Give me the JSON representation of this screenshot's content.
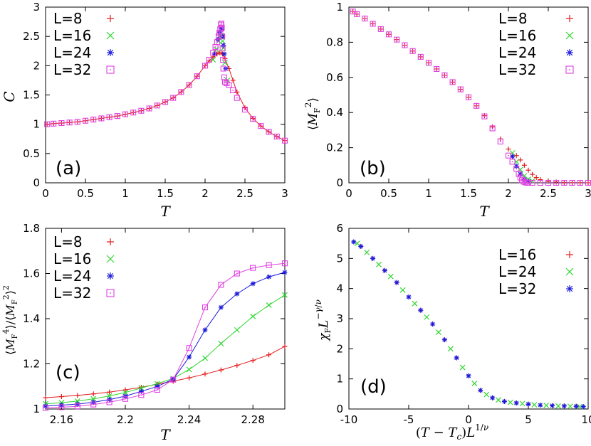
{
  "chart_data": [
    {
      "type": "scatter",
      "panel": "(a)",
      "xlabel": "T",
      "ylabel": "C",
      "xlim": [
        0,
        3
      ],
      "ylim": [
        0,
        3
      ],
      "xticks": [
        "0",
        "0.5",
        "1",
        "1.5",
        "2",
        "2.5",
        "3"
      ],
      "yticks": [
        "0",
        "0.5",
        "1",
        "1.5",
        "2",
        "2.5",
        "3"
      ],
      "legend_position": "top-left",
      "series": [
        {
          "name": "L=8",
          "marker": "plus",
          "color": "#e41a1c",
          "x": [
            0.02,
            0.1,
            0.2,
            0.3,
            0.4,
            0.5,
            0.6,
            0.7,
            0.8,
            0.9,
            1.0,
            1.1,
            1.2,
            1.3,
            1.4,
            1.5,
            1.6,
            1.7,
            1.8,
            1.9,
            2.0,
            2.05,
            2.1,
            2.15,
            2.18,
            2.2,
            2.22,
            2.25,
            2.3,
            2.35,
            2.4,
            2.5,
            2.6,
            2.7,
            2.8,
            2.9,
            3.0
          ],
          "y": [
            1.0,
            1.01,
            1.02,
            1.03,
            1.04,
            1.06,
            1.08,
            1.1,
            1.12,
            1.14,
            1.17,
            1.2,
            1.23,
            1.27,
            1.32,
            1.38,
            1.45,
            1.55,
            1.67,
            1.82,
            2.0,
            2.08,
            2.15,
            2.2,
            2.22,
            2.22,
            2.2,
            2.12,
            1.95,
            1.75,
            1.55,
            1.28,
            1.1,
            0.97,
            0.87,
            0.79,
            0.72
          ]
        },
        {
          "name": "L=16",
          "marker": "cross",
          "color": "#2fd62f",
          "x": [
            2.1,
            2.14,
            2.17,
            2.19,
            2.2,
            2.21,
            2.22,
            2.23,
            2.25,
            2.28
          ],
          "y": [
            2.1,
            2.28,
            2.42,
            2.5,
            2.52,
            2.5,
            2.42,
            2.3,
            2.05,
            1.75
          ]
        },
        {
          "name": "L=24",
          "marker": "star",
          "color": "#1a1adc",
          "x": [
            2.12,
            2.16,
            2.18,
            2.2,
            2.21,
            2.22,
            2.23,
            2.24,
            2.26
          ],
          "y": [
            2.2,
            2.45,
            2.57,
            2.64,
            2.62,
            2.5,
            2.35,
            2.2,
            1.95
          ]
        },
        {
          "name": "L=32",
          "marker": "square",
          "color": "#e040e0",
          "x": [
            0.02,
            0.1,
            0.2,
            0.3,
            0.4,
            0.5,
            0.6,
            0.7,
            0.8,
            0.9,
            1.0,
            1.1,
            1.2,
            1.3,
            1.4,
            1.5,
            1.6,
            1.7,
            1.8,
            1.9,
            2.0,
            2.05,
            2.1,
            2.13,
            2.15,
            2.17,
            2.18,
            2.19,
            2.2,
            2.205,
            2.21,
            2.215,
            2.22,
            2.225,
            2.23,
            2.24,
            2.25,
            2.27,
            2.3,
            2.35,
            2.4,
            2.5,
            2.6,
            2.7,
            2.8,
            2.9,
            3.0
          ],
          "y": [
            1.0,
            1.01,
            1.02,
            1.03,
            1.04,
            1.06,
            1.08,
            1.1,
            1.12,
            1.14,
            1.17,
            1.2,
            1.23,
            1.27,
            1.32,
            1.38,
            1.45,
            1.55,
            1.67,
            1.82,
            2.0,
            2.1,
            2.22,
            2.32,
            2.4,
            2.5,
            2.56,
            2.62,
            2.7,
            2.72,
            2.65,
            2.5,
            2.3,
            2.1,
            1.95,
            1.8,
            1.72,
            1.7,
            1.67,
            1.58,
            1.45,
            1.25,
            1.09,
            0.97,
            0.87,
            0.79,
            0.72
          ]
        }
      ]
    },
    {
      "type": "scatter",
      "panel": "(b)",
      "xlabel": "T",
      "ylabel": "⟨M_F^2⟩",
      "xlim": [
        0,
        3
      ],
      "ylim": [
        0,
        1
      ],
      "xticks": [
        "0",
        "0.5",
        "1",
        "1.5",
        "2",
        "2.5",
        "3"
      ],
      "yticks": [
        "0",
        "0.2",
        "0.4",
        "0.6",
        "0.8",
        "1"
      ],
      "legend_position": "top-right",
      "series": [
        {
          "name": "L=8",
          "marker": "plus",
          "color": "#e41a1c",
          "x": [
            0.05,
            0.1,
            0.2,
            0.3,
            0.4,
            0.5,
            0.6,
            0.7,
            0.8,
            0.9,
            1.0,
            1.1,
            1.2,
            1.3,
            1.4,
            1.5,
            1.6,
            1.7,
            1.8,
            1.9,
            2.0,
            2.1,
            2.15,
            2.2,
            2.25,
            2.3,
            2.35,
            2.4,
            2.5,
            2.6,
            2.7,
            2.8,
            2.9,
            3.0
          ],
          "y": [
            0.975,
            0.96,
            0.935,
            0.905,
            0.875,
            0.845,
            0.815,
            0.783,
            0.75,
            0.717,
            0.683,
            0.648,
            0.612,
            0.573,
            0.532,
            0.487,
            0.438,
            0.382,
            0.318,
            0.25,
            0.192,
            0.155,
            0.13,
            0.1,
            0.072,
            0.048,
            0.03,
            0.018,
            0.008,
            0.004,
            0.002,
            0.001,
            0.001,
            0.0
          ]
        },
        {
          "name": "L=16",
          "marker": "cross",
          "color": "#2fd62f",
          "x": [
            2.05,
            2.1,
            2.15,
            2.2,
            2.25,
            2.3
          ],
          "y": [
            0.17,
            0.12,
            0.075,
            0.04,
            0.02,
            0.01
          ]
        },
        {
          "name": "L=24",
          "marker": "star",
          "color": "#1a1adc",
          "x": [
            2.05,
            2.1,
            2.15,
            2.2,
            2.25
          ],
          "y": [
            0.15,
            0.095,
            0.05,
            0.02,
            0.008
          ]
        },
        {
          "name": "L=32",
          "marker": "square",
          "color": "#e040e0",
          "x": [
            0.05,
            0.1,
            0.2,
            0.3,
            0.4,
            0.5,
            0.6,
            0.7,
            0.8,
            0.9,
            1.0,
            1.1,
            1.2,
            1.3,
            1.4,
            1.5,
            1.6,
            1.7,
            1.8,
            1.9,
            2.0,
            2.05,
            2.1,
            2.13,
            2.15,
            2.17,
            2.19,
            2.21,
            2.23,
            2.25,
            2.3,
            2.4,
            2.5,
            2.6,
            2.7,
            2.8,
            2.9,
            3.0
          ],
          "y": [
            0.975,
            0.96,
            0.935,
            0.905,
            0.875,
            0.845,
            0.815,
            0.783,
            0.75,
            0.717,
            0.683,
            0.648,
            0.612,
            0.573,
            0.532,
            0.487,
            0.438,
            0.378,
            0.31,
            0.235,
            0.155,
            0.12,
            0.08,
            0.05,
            0.03,
            0.015,
            0.007,
            0.003,
            0.001,
            0.0,
            0.0,
            0.0,
            0.0,
            0.0,
            0.0,
            0.0,
            0.0,
            0.0
          ]
        }
      ]
    },
    {
      "type": "line",
      "panel": "(c)",
      "xlabel": "T",
      "ylabel": "⟨M_F^4⟩/⟨M_F^2⟩^2",
      "xlim": [
        2.15,
        2.3
      ],
      "ylim": [
        1.0,
        1.8
      ],
      "xticks": [
        "2.16",
        "2.2",
        "2.24",
        "2.28"
      ],
      "yticks": [
        "1",
        "1.2",
        "1.4",
        "1.6",
        "1.8"
      ],
      "legend_position": "top-left",
      "x": [
        2.15,
        2.16,
        2.17,
        2.18,
        2.19,
        2.2,
        2.21,
        2.22,
        2.23,
        2.24,
        2.25,
        2.26,
        2.27,
        2.28,
        2.29,
        2.3
      ],
      "series": [
        {
          "name": "L=8",
          "marker": "plus",
          "color": "#e41a1c",
          "values": [
            1.05,
            1.055,
            1.06,
            1.067,
            1.075,
            1.085,
            1.096,
            1.11,
            1.123,
            1.138,
            1.155,
            1.173,
            1.193,
            1.215,
            1.24,
            1.277
          ]
        },
        {
          "name": "L=16",
          "marker": "cross",
          "color": "#2fd62f",
          "values": [
            1.023,
            1.028,
            1.035,
            1.045,
            1.058,
            1.073,
            1.093,
            1.112,
            1.135,
            1.175,
            1.225,
            1.29,
            1.35,
            1.41,
            1.46,
            1.505
          ]
        },
        {
          "name": "L=24",
          "marker": "star",
          "color": "#1a1adc",
          "values": [
            1.013,
            1.017,
            1.022,
            1.03,
            1.042,
            1.057,
            1.078,
            1.1,
            1.132,
            1.23,
            1.35,
            1.45,
            1.51,
            1.555,
            1.585,
            1.605
          ]
        },
        {
          "name": "L=32",
          "marker": "square",
          "color": "#e040e0",
          "values": [
            1.005,
            1.008,
            1.012,
            1.02,
            1.03,
            1.045,
            1.062,
            1.085,
            1.13,
            1.27,
            1.45,
            1.55,
            1.6,
            1.625,
            1.637,
            1.645
          ]
        }
      ]
    },
    {
      "type": "scatter",
      "panel": "(d)",
      "xlabel": "(T − T_c)L^{1/ν}",
      "ylabel": "χ_F L^{−γ/ν}",
      "xlim": [
        -10,
        10
      ],
      "ylim": [
        0,
        6
      ],
      "xticks": [
        "-10",
        "-5",
        "0",
        "5",
        "10"
      ],
      "yticks": [
        "0",
        "1",
        "2",
        "3",
        "4",
        "5",
        "6"
      ],
      "legend_position": "top-right",
      "series": [
        {
          "name": "L=16",
          "marker": "plus",
          "color": "#e41a1c",
          "x": [
            -9,
            -8,
            -7,
            -6,
            -5,
            -4,
            -3,
            -2,
            -1,
            0,
            1,
            2,
            3,
            4,
            5,
            6,
            7,
            8,
            9
          ],
          "y": [
            5.4,
            5.0,
            4.6,
            4.2,
            3.72,
            3.28,
            2.82,
            2.3,
            1.7,
            1.1,
            0.62,
            0.37,
            0.25,
            0.2,
            0.16,
            0.13,
            0.11,
            0.1,
            0.09
          ]
        },
        {
          "name": "L=24",
          "marker": "cross",
          "color": "#2fd62f",
          "x": [
            -9.3,
            -8.5,
            -7.5,
            -6.5,
            -5.5,
            -4.5,
            -3.5,
            -2.5,
            -1.5,
            -0.5,
            0.5,
            1.5,
            2.5,
            3.5,
            4.5,
            5.5,
            6.5,
            7.5,
            8.5,
            9.3
          ],
          "y": [
            5.5,
            5.2,
            4.8,
            4.4,
            3.95,
            3.5,
            3.05,
            2.55,
            2.0,
            1.38,
            0.85,
            0.48,
            0.3,
            0.22,
            0.18,
            0.14,
            0.12,
            0.1,
            0.09,
            0.08
          ]
        },
        {
          "name": "L=32",
          "marker": "star",
          "color": "#1a1adc",
          "x": [
            -9.6,
            -9,
            -8,
            -7,
            -6,
            -5,
            -4,
            -3,
            -2,
            -1,
            0,
            1,
            2,
            3,
            4,
            5,
            6,
            7,
            8,
            9,
            9.6
          ],
          "y": [
            5.55,
            5.4,
            5.0,
            4.6,
            4.2,
            3.72,
            3.28,
            2.82,
            2.3,
            1.7,
            1.1,
            0.62,
            0.37,
            0.25,
            0.2,
            0.16,
            0.13,
            0.11,
            0.1,
            0.09,
            0.08
          ]
        }
      ]
    }
  ]
}
